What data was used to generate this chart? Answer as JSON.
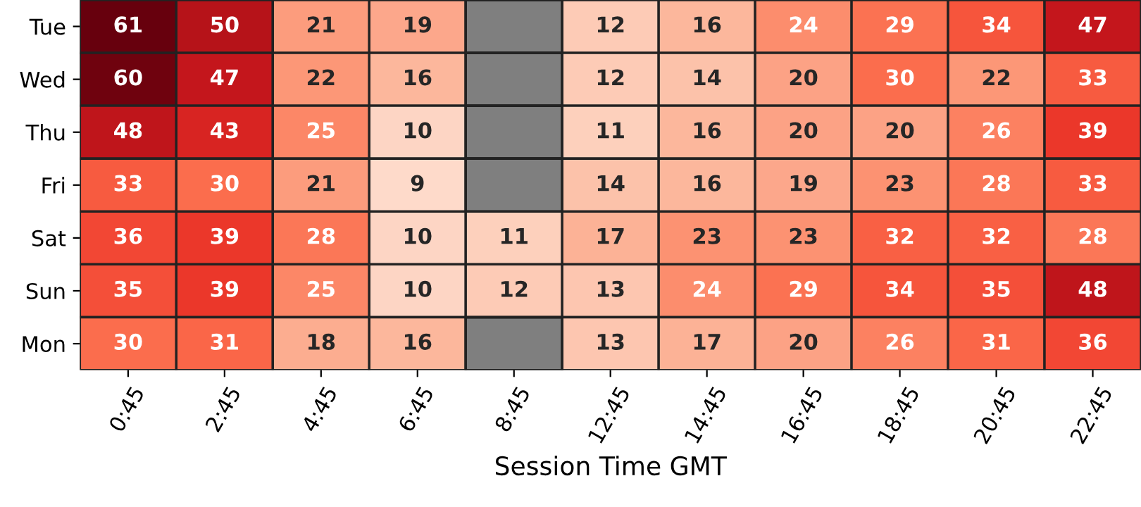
{
  "chart_data": {
    "type": "heatmap",
    "categories": [
      "0:45",
      "2:45",
      "4:45",
      "6:45",
      "8:45",
      "12:45",
      "14:45",
      "16:45",
      "18:45",
      "20:45",
      "22:45"
    ],
    "y_categories": [
      "Tue",
      "Wed",
      "Thu",
      "Fri",
      "Sat",
      "Sun",
      "Mon"
    ],
    "xlabel": "Session Time GMT",
    "data_labels": true,
    "cells": [
      [
        61,
        50,
        21,
        19,
        null,
        12,
        16,
        24,
        29,
        34,
        47
      ],
      [
        60,
        47,
        22,
        16,
        null,
        12,
        14,
        20,
        30,
        22,
        33
      ],
      [
        48,
        43,
        25,
        10,
        null,
        11,
        16,
        20,
        20,
        26,
        39
      ],
      [
        33,
        30,
        21,
        9,
        null,
        14,
        16,
        19,
        23,
        28,
        33
      ],
      [
        36,
        39,
        28,
        10,
        11,
        17,
        23,
        23,
        32,
        32,
        28
      ],
      [
        35,
        39,
        25,
        10,
        12,
        13,
        24,
        29,
        34,
        35,
        48
      ],
      [
        30,
        31,
        18,
        16,
        null,
        13,
        17,
        20,
        26,
        31,
        36
      ]
    ]
  }
}
